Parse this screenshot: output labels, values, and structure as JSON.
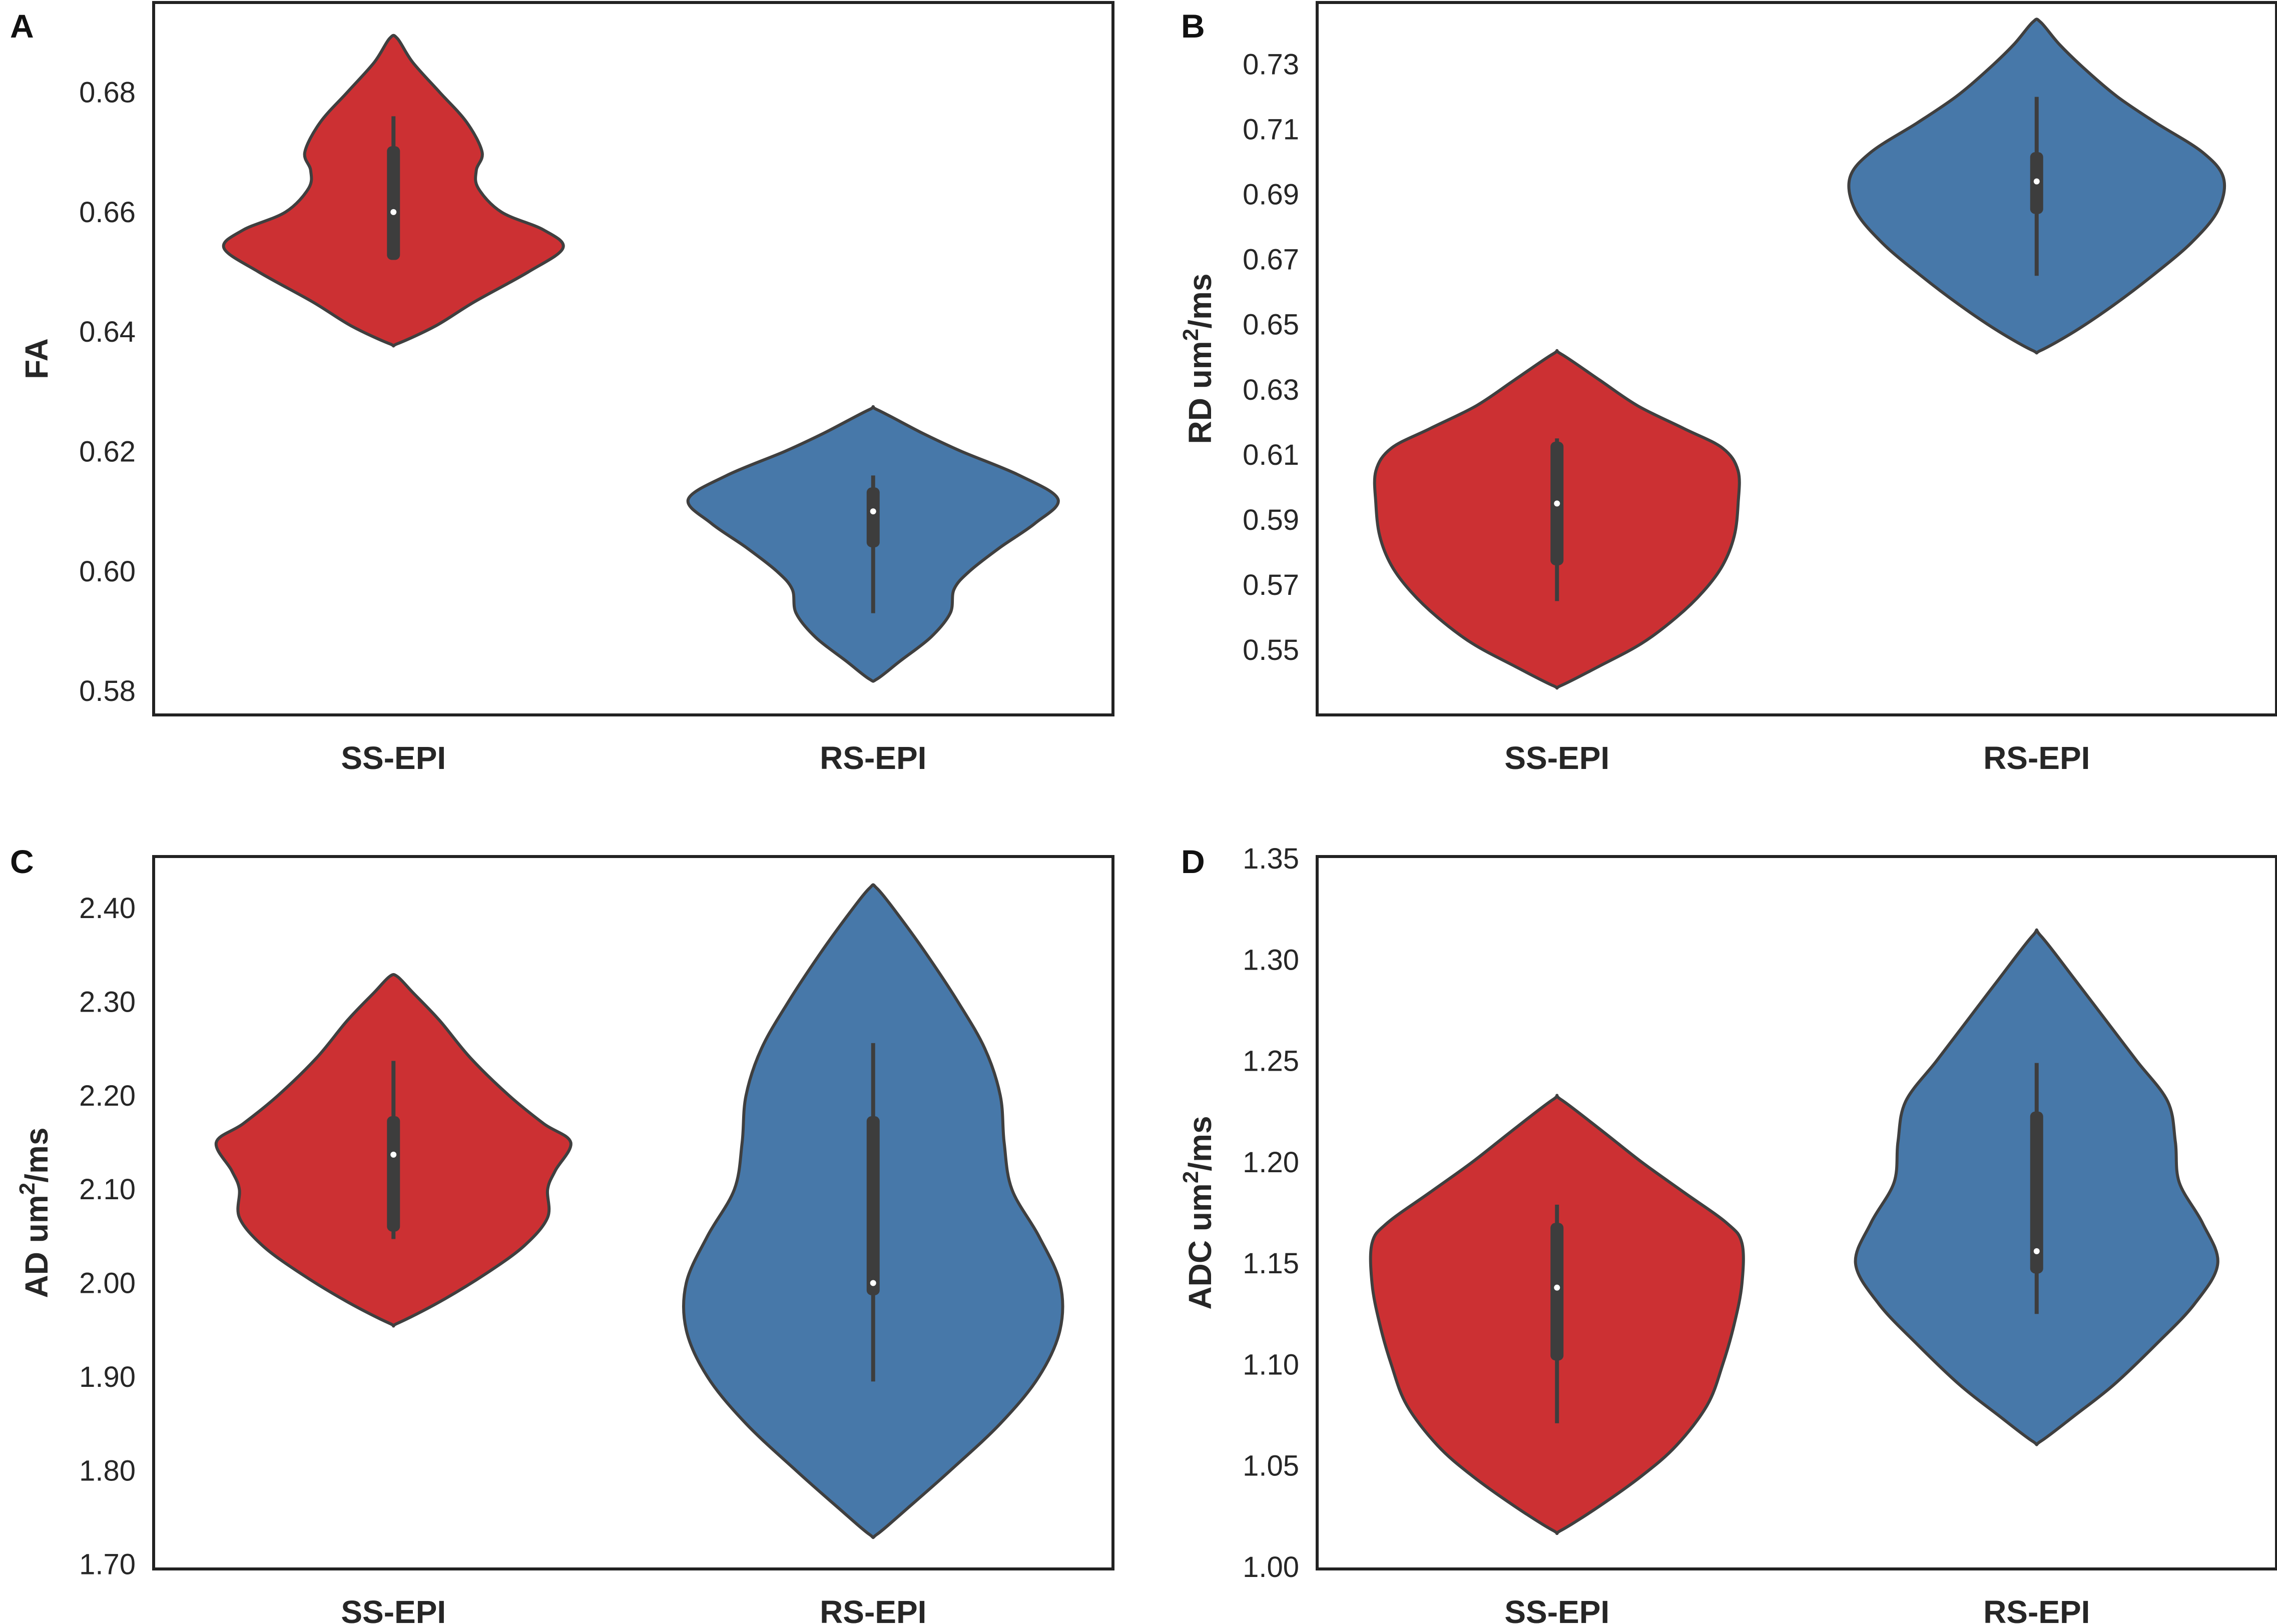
{
  "colors": {
    "ss_epi": "#cc3033",
    "rs_epi": "#4778a9",
    "outline": "#3f3f3f",
    "box": "#3d3d3d",
    "median": "#ffffff",
    "frame": "#222222"
  },
  "chart_data": [
    {
      "type": "violin",
      "panel": "A",
      "ylabel": "FA",
      "ylabel_sup": "",
      "ylabel_suffix": "",
      "ylim": [
        0.576,
        0.695
      ],
      "yticks": [
        0.58,
        0.6,
        0.62,
        0.64,
        0.66,
        0.68
      ],
      "ytick_labels": [
        "0.58",
        "0.60",
        "0.62",
        "0.64",
        "0.66",
        "0.68"
      ],
      "categories": [
        "SS-EPI",
        "RS-EPI"
      ],
      "series": [
        {
          "name": "SS-EPI",
          "color": "#cc3033",
          "min": 0.638,
          "max": 0.689,
          "median": 0.66,
          "q1": 0.652,
          "q3": 0.671,
          "whisker_low": 0.652,
          "whisker_high": 0.676,
          "density": [
            [
              0.638,
              0.02
            ],
            [
              0.641,
              0.22
            ],
            [
              0.645,
              0.42
            ],
            [
              0.65,
              0.7
            ],
            [
              0.654,
              0.88
            ],
            [
              0.657,
              0.78
            ],
            [
              0.66,
              0.56
            ],
            [
              0.664,
              0.44
            ],
            [
              0.667,
              0.43
            ],
            [
              0.67,
              0.46
            ],
            [
              0.675,
              0.38
            ],
            [
              0.68,
              0.24
            ],
            [
              0.685,
              0.1
            ],
            [
              0.689,
              0.02
            ]
          ]
        },
        {
          "name": "RS-EPI",
          "color": "#4778a9",
          "min": 0.582,
          "max": 0.627,
          "median": 0.61,
          "q1": 0.604,
          "q3": 0.614,
          "whisker_low": 0.593,
          "whisker_high": 0.616,
          "density": [
            [
              0.582,
              0.02
            ],
            [
              0.585,
              0.14
            ],
            [
              0.589,
              0.3
            ],
            [
              0.593,
              0.4
            ],
            [
              0.597,
              0.42
            ],
            [
              0.6,
              0.5
            ],
            [
              0.604,
              0.66
            ],
            [
              0.608,
              0.84
            ],
            [
              0.612,
              0.96
            ],
            [
              0.616,
              0.76
            ],
            [
              0.62,
              0.46
            ],
            [
              0.623,
              0.26
            ],
            [
              0.627,
              0.02
            ]
          ]
        }
      ]
    },
    {
      "type": "violin",
      "panel": "B",
      "ylabel": "RD um",
      "ylabel_sup": "2",
      "ylabel_suffix": "/ms",
      "ylim": [
        0.53,
        0.749
      ],
      "yticks": [
        0.55,
        0.57,
        0.59,
        0.61,
        0.63,
        0.65,
        0.67,
        0.69,
        0.71,
        0.73
      ],
      "ytick_labels": [
        "0.55",
        "0.57",
        "0.59",
        "0.61",
        "0.63",
        "0.65",
        "0.67",
        "0.69",
        "0.71",
        "0.73"
      ],
      "categories": [
        "SS-EPI",
        "RS-EPI"
      ],
      "series": [
        {
          "name": "SS-EPI",
          "color": "#cc3033",
          "min": 0.539,
          "max": 0.641,
          "median": 0.595,
          "q1": 0.576,
          "q3": 0.614,
          "whisker_low": 0.565,
          "whisker_high": 0.615,
          "density": [
            [
              0.539,
              0.02
            ],
            [
              0.545,
              0.22
            ],
            [
              0.552,
              0.44
            ],
            [
              0.56,
              0.62
            ],
            [
              0.568,
              0.76
            ],
            [
              0.576,
              0.86
            ],
            [
              0.585,
              0.92
            ],
            [
              0.595,
              0.94
            ],
            [
              0.605,
              0.94
            ],
            [
              0.612,
              0.86
            ],
            [
              0.618,
              0.66
            ],
            [
              0.625,
              0.42
            ],
            [
              0.633,
              0.22
            ],
            [
              0.641,
              0.02
            ]
          ]
        },
        {
          "name": "RS-EPI",
          "color": "#4778a9",
          "min": 0.642,
          "max": 0.743,
          "median": 0.694,
          "q1": 0.684,
          "q3": 0.703,
          "whisker_low": 0.665,
          "whisker_high": 0.72,
          "density": [
            [
              0.642,
              0.02
            ],
            [
              0.648,
              0.2
            ],
            [
              0.656,
              0.4
            ],
            [
              0.665,
              0.6
            ],
            [
              0.675,
              0.8
            ],
            [
              0.685,
              0.94
            ],
            [
              0.695,
              0.97
            ],
            [
              0.703,
              0.86
            ],
            [
              0.712,
              0.62
            ],
            [
              0.72,
              0.42
            ],
            [
              0.728,
              0.26
            ],
            [
              0.736,
              0.12
            ],
            [
              0.743,
              0.02
            ]
          ]
        }
      ]
    },
    {
      "type": "violin",
      "panel": "C",
      "ylabel": "AD um",
      "ylabel_sup": "2",
      "ylabel_suffix": "/ms",
      "ylim": [
        1.695,
        2.455
      ],
      "yticks": [
        1.7,
        1.8,
        1.9,
        2.0,
        2.1,
        2.2,
        2.3,
        2.4
      ],
      "ytick_labels": [
        "1.70",
        "1.80",
        "1.90",
        "2.00",
        "2.10",
        "2.20",
        "2.30",
        "2.40"
      ],
      "categories": [
        "SS-EPI",
        "RS-EPI"
      ],
      "series": [
        {
          "name": "SS-EPI",
          "color": "#cc3033",
          "min": 1.957,
          "max": 2.327,
          "median": 2.137,
          "q1": 2.055,
          "q3": 2.178,
          "whisker_low": 2.047,
          "whisker_high": 2.237,
          "density": [
            [
              1.957,
              0.02
            ],
            [
              1.98,
              0.24
            ],
            [
              2.01,
              0.48
            ],
            [
              2.04,
              0.68
            ],
            [
              2.07,
              0.8
            ],
            [
              2.1,
              0.8
            ],
            [
              2.12,
              0.84
            ],
            [
              2.15,
              0.92
            ],
            [
              2.17,
              0.78
            ],
            [
              2.2,
              0.6
            ],
            [
              2.24,
              0.4
            ],
            [
              2.28,
              0.24
            ],
            [
              2.31,
              0.1
            ],
            [
              2.327,
              0.02
            ]
          ]
        },
        {
          "name": "RS-EPI",
          "color": "#4778a9",
          "min": 1.732,
          "max": 2.421,
          "median": 2.0,
          "q1": 1.987,
          "q3": 2.178,
          "whisker_low": 1.895,
          "whisker_high": 2.256,
          "density": [
            [
              1.732,
              0.02
            ],
            [
              1.76,
              0.18
            ],
            [
              1.8,
              0.4
            ],
            [
              1.85,
              0.66
            ],
            [
              1.9,
              0.86
            ],
            [
              1.95,
              0.97
            ],
            [
              2.0,
              0.97
            ],
            [
              2.05,
              0.86
            ],
            [
              2.1,
              0.72
            ],
            [
              2.15,
              0.68
            ],
            [
              2.2,
              0.66
            ],
            [
              2.25,
              0.58
            ],
            [
              2.3,
              0.44
            ],
            [
              2.35,
              0.28
            ],
            [
              2.39,
              0.14
            ],
            [
              2.421,
              0.02
            ]
          ]
        }
      ]
    },
    {
      "type": "violin",
      "panel": "D",
      "ylabel": "ADC um",
      "ylabel_sup": "2",
      "ylabel_suffix": "/ms",
      "ylim": [
        0.999,
        1.351
      ],
      "yticks": [
        1.0,
        1.05,
        1.1,
        1.15,
        1.2,
        1.25,
        1.3,
        1.35
      ],
      "ytick_labels": [
        "1.00",
        "1.05",
        "1.10",
        "1.15",
        "1.20",
        "1.25",
        "1.30",
        "1.35"
      ],
      "categories": [
        "SS-EPI",
        "RS-EPI"
      ],
      "series": [
        {
          "name": "SS-EPI",
          "color": "#cc3033",
          "min": 1.018,
          "max": 1.231,
          "median": 1.138,
          "q1": 1.102,
          "q3": 1.17,
          "whisker_low": 1.071,
          "whisker_high": 1.179,
          "density": [
            [
              1.018,
              0.02
            ],
            [
              1.03,
              0.22
            ],
            [
              1.045,
              0.44
            ],
            [
              1.06,
              0.62
            ],
            [
              1.08,
              0.78
            ],
            [
              1.1,
              0.86
            ],
            [
              1.12,
              0.92
            ],
            [
              1.14,
              0.96
            ],
            [
              1.16,
              0.96
            ],
            [
              1.17,
              0.88
            ],
            [
              1.185,
              0.66
            ],
            [
              1.2,
              0.44
            ],
            [
              1.215,
              0.24
            ],
            [
              1.231,
              0.02
            ]
          ]
        },
        {
          "name": "RS-EPI",
          "color": "#4778a9",
          "min": 1.062,
          "max": 1.312,
          "median": 1.156,
          "q1": 1.145,
          "q3": 1.225,
          "whisker_low": 1.125,
          "whisker_high": 1.249,
          "density": [
            [
              1.062,
              0.02
            ],
            [
              1.075,
              0.2
            ],
            [
              1.09,
              0.4
            ],
            [
              1.11,
              0.62
            ],
            [
              1.13,
              0.82
            ],
            [
              1.15,
              0.94
            ],
            [
              1.17,
              0.86
            ],
            [
              1.19,
              0.74
            ],
            [
              1.21,
              0.72
            ],
            [
              1.23,
              0.68
            ],
            [
              1.25,
              0.52
            ],
            [
              1.27,
              0.36
            ],
            [
              1.29,
              0.2
            ],
            [
              1.312,
              0.02
            ]
          ]
        }
      ]
    }
  ]
}
